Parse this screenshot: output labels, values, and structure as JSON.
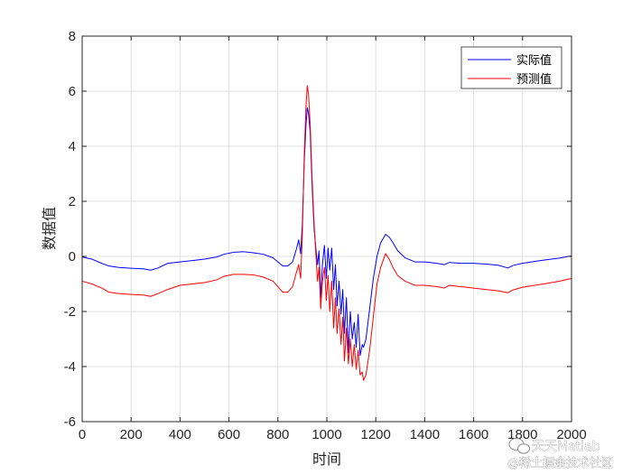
{
  "chart_data": {
    "type": "line",
    "xlabel": "时间",
    "ylabel": "数据值",
    "xlim": [
      0,
      2000
    ],
    "ylim": [
      -6,
      8
    ],
    "xticks": [
      0,
      200,
      400,
      600,
      800,
      1000,
      1200,
      1400,
      1600,
      1800,
      2000
    ],
    "yticks": [
      -6,
      -4,
      -2,
      0,
      2,
      4,
      6,
      8
    ],
    "grid": true,
    "legend_position": "top-right",
    "series": [
      {
        "name": "实际值",
        "color": "#0000ff",
        "points": [
          [
            0,
            -0.02
          ],
          [
            40,
            -0.1
          ],
          [
            80,
            -0.25
          ],
          [
            110,
            -0.35
          ],
          [
            150,
            -0.4
          ],
          [
            200,
            -0.43
          ],
          [
            250,
            -0.45
          ],
          [
            280,
            -0.5
          ],
          [
            310,
            -0.42
          ],
          [
            350,
            -0.25
          ],
          [
            400,
            -0.2
          ],
          [
            450,
            -0.15
          ],
          [
            500,
            -0.1
          ],
          [
            550,
            -0.02
          ],
          [
            580,
            0.08
          ],
          [
            620,
            0.15
          ],
          [
            660,
            0.17
          ],
          [
            700,
            0.13
          ],
          [
            740,
            0.08
          ],
          [
            780,
            -0.05
          ],
          [
            800,
            -0.2
          ],
          [
            820,
            -0.35
          ],
          [
            840,
            -0.35
          ],
          [
            860,
            -0.2
          ],
          [
            875,
            0.25
          ],
          [
            885,
            0.6
          ],
          [
            893,
            0.1
          ],
          [
            900,
            1.2
          ],
          [
            908,
            3.5
          ],
          [
            915,
            4.8
          ],
          [
            920,
            5.4
          ],
          [
            925,
            5.2
          ],
          [
            932,
            4.5
          ],
          [
            940,
            2.5
          ],
          [
            948,
            1.0
          ],
          [
            955,
            0.3
          ],
          [
            962,
            -0.3
          ],
          [
            968,
            0.2
          ],
          [
            975,
            -1.5
          ],
          [
            982,
            -0.3
          ],
          [
            990,
            0.4
          ],
          [
            998,
            -0.8
          ],
          [
            1005,
            0.3
          ],
          [
            1012,
            -0.5
          ],
          [
            1020,
            0.3
          ],
          [
            1028,
            -1.2
          ],
          [
            1035,
            -0.3
          ],
          [
            1042,
            -1.8
          ],
          [
            1050,
            -0.9
          ],
          [
            1058,
            -2.1
          ],
          [
            1065,
            -1.2
          ],
          [
            1072,
            -2.8
          ],
          [
            1080,
            -1.5
          ],
          [
            1088,
            -3.5
          ],
          [
            1096,
            -2.0
          ],
          [
            1104,
            -3.0
          ],
          [
            1112,
            -2.4
          ],
          [
            1120,
            -3.3
          ],
          [
            1128,
            -2.1
          ],
          [
            1136,
            -3.6
          ],
          [
            1145,
            -3.2
          ],
          [
            1150,
            -3.3
          ],
          [
            1160,
            -3.0
          ],
          [
            1175,
            -1.9
          ],
          [
            1190,
            -0.8
          ],
          [
            1205,
            0.0
          ],
          [
            1220,
            0.5
          ],
          [
            1240,
            0.8
          ],
          [
            1255,
            0.7
          ],
          [
            1270,
            0.5
          ],
          [
            1290,
            0.2
          ],
          [
            1320,
            -0.05
          ],
          [
            1360,
            -0.2
          ],
          [
            1400,
            -0.2
          ],
          [
            1450,
            -0.25
          ],
          [
            1480,
            -0.3
          ],
          [
            1500,
            -0.22
          ],
          [
            1550,
            -0.25
          ],
          [
            1600,
            -0.25
          ],
          [
            1650,
            -0.28
          ],
          [
            1700,
            -0.32
          ],
          [
            1740,
            -0.42
          ],
          [
            1760,
            -0.33
          ],
          [
            1800,
            -0.25
          ],
          [
            1850,
            -0.18
          ],
          [
            1900,
            -0.12
          ],
          [
            1950,
            -0.06
          ],
          [
            2000,
            0.02
          ]
        ]
      },
      {
        "name": "预测值",
        "color": "#ff0000",
        "points": [
          [
            0,
            -0.9
          ],
          [
            40,
            -1.0
          ],
          [
            80,
            -1.15
          ],
          [
            110,
            -1.3
          ],
          [
            150,
            -1.35
          ],
          [
            200,
            -1.38
          ],
          [
            250,
            -1.4
          ],
          [
            280,
            -1.45
          ],
          [
            310,
            -1.35
          ],
          [
            350,
            -1.2
          ],
          [
            400,
            -1.05
          ],
          [
            450,
            -1.0
          ],
          [
            500,
            -0.95
          ],
          [
            550,
            -0.85
          ],
          [
            580,
            -0.72
          ],
          [
            620,
            -0.65
          ],
          [
            660,
            -0.65
          ],
          [
            700,
            -0.67
          ],
          [
            740,
            -0.75
          ],
          [
            780,
            -0.9
          ],
          [
            800,
            -1.1
          ],
          [
            820,
            -1.3
          ],
          [
            840,
            -1.3
          ],
          [
            860,
            -1.1
          ],
          [
            875,
            -0.6
          ],
          [
            885,
            -0.3
          ],
          [
            893,
            -0.8
          ],
          [
            900,
            0.8
          ],
          [
            908,
            3.8
          ],
          [
            915,
            5.5
          ],
          [
            920,
            6.2
          ],
          [
            925,
            5.9
          ],
          [
            932,
            4.8
          ],
          [
            940,
            2.8
          ],
          [
            948,
            1.2
          ],
          [
            955,
            0.1
          ],
          [
            962,
            -0.9
          ],
          [
            968,
            -0.4
          ],
          [
            975,
            -1.9
          ],
          [
            982,
            -0.9
          ],
          [
            990,
            -0.4
          ],
          [
            998,
            -1.6
          ],
          [
            1005,
            -0.7
          ],
          [
            1012,
            -2.0
          ],
          [
            1020,
            -0.9
          ],
          [
            1028,
            -2.6
          ],
          [
            1035,
            -1.5
          ],
          [
            1042,
            -2.8
          ],
          [
            1050,
            -1.9
          ],
          [
            1058,
            -3.2
          ],
          [
            1065,
            -2.2
          ],
          [
            1072,
            -3.8
          ],
          [
            1080,
            -2.6
          ],
          [
            1088,
            -3.9
          ],
          [
            1096,
            -3.0
          ],
          [
            1104,
            -4.0
          ],
          [
            1112,
            -3.2
          ],
          [
            1120,
            -4.1
          ],
          [
            1128,
            -3.4
          ],
          [
            1136,
            -4.3
          ],
          [
            1145,
            -4.2
          ],
          [
            1150,
            -4.5
          ],
          [
            1160,
            -4.3
          ],
          [
            1175,
            -3.4
          ],
          [
            1190,
            -2.2
          ],
          [
            1205,
            -1.0
          ],
          [
            1220,
            -0.4
          ],
          [
            1240,
            0.1
          ],
          [
            1255,
            -0.1
          ],
          [
            1270,
            -0.4
          ],
          [
            1290,
            -0.7
          ],
          [
            1320,
            -0.9
          ],
          [
            1360,
            -1.05
          ],
          [
            1400,
            -1.05
          ],
          [
            1450,
            -1.1
          ],
          [
            1480,
            -1.15
          ],
          [
            1500,
            -1.05
          ],
          [
            1550,
            -1.1
          ],
          [
            1600,
            -1.15
          ],
          [
            1650,
            -1.2
          ],
          [
            1700,
            -1.25
          ],
          [
            1740,
            -1.32
          ],
          [
            1760,
            -1.22
          ],
          [
            1800,
            -1.12
          ],
          [
            1850,
            -1.05
          ],
          [
            1900,
            -0.98
          ],
          [
            1950,
            -0.9
          ],
          [
            2000,
            -0.8
          ]
        ]
      }
    ]
  },
  "watermark": {
    "line1": "天天Matlab",
    "line2": "@稀土掘金技术社区"
  }
}
